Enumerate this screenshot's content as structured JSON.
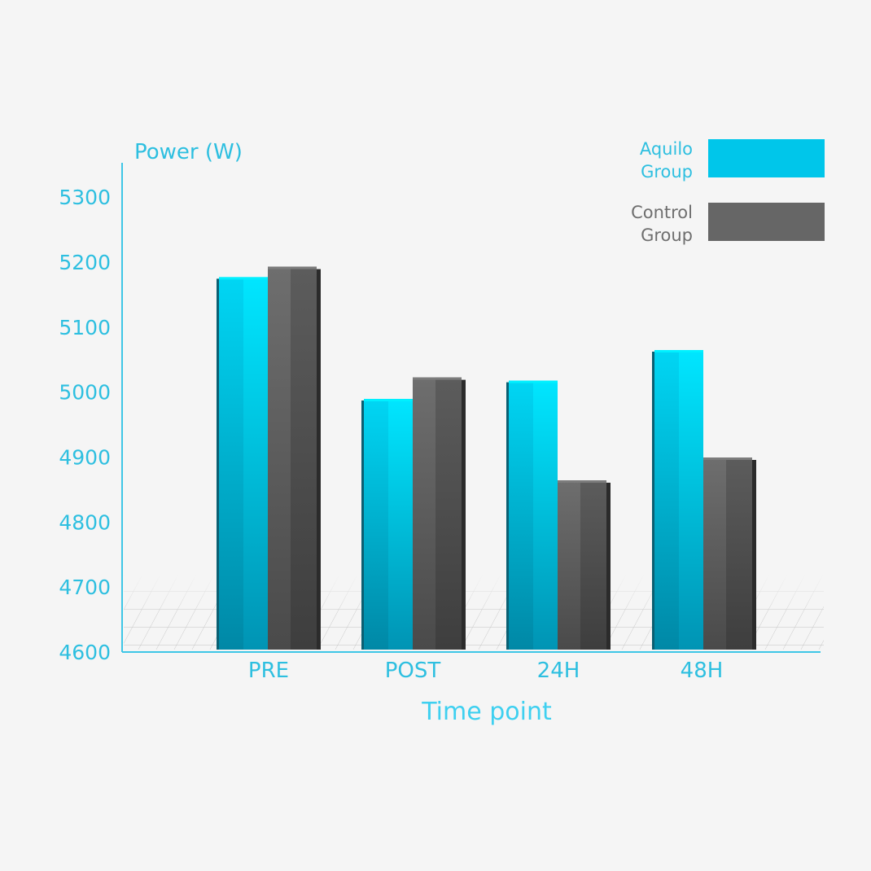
{
  "chart_data": {
    "type": "bar",
    "title": "",
    "ylabel": "Power (W)",
    "xlabel": "Time point",
    "categories": [
      "PRE",
      "POST",
      "24H",
      "48H"
    ],
    "y_ticks": [
      "4600",
      "4700",
      "4800",
      "4900",
      "5000",
      "5100",
      "5200",
      "5300"
    ],
    "ylim": [
      4600,
      5350
    ],
    "grid": false,
    "legend_position": "top-right",
    "series": [
      {
        "name_lines": [
          "Aquilo",
          "Group"
        ],
        "color": "#00c6ea",
        "values": [
          5172,
          4985,
          5013,
          5060
        ]
      },
      {
        "name_lines": [
          "Control",
          "Group"
        ],
        "color": "#666666",
        "values": [
          5188,
          5018,
          4860,
          4895
        ]
      }
    ],
    "colors": {
      "axis": "#3ec6e6",
      "label": "#2dbfe0",
      "control_text": "#6e6e6e",
      "background": "#f5f5f5"
    }
  }
}
